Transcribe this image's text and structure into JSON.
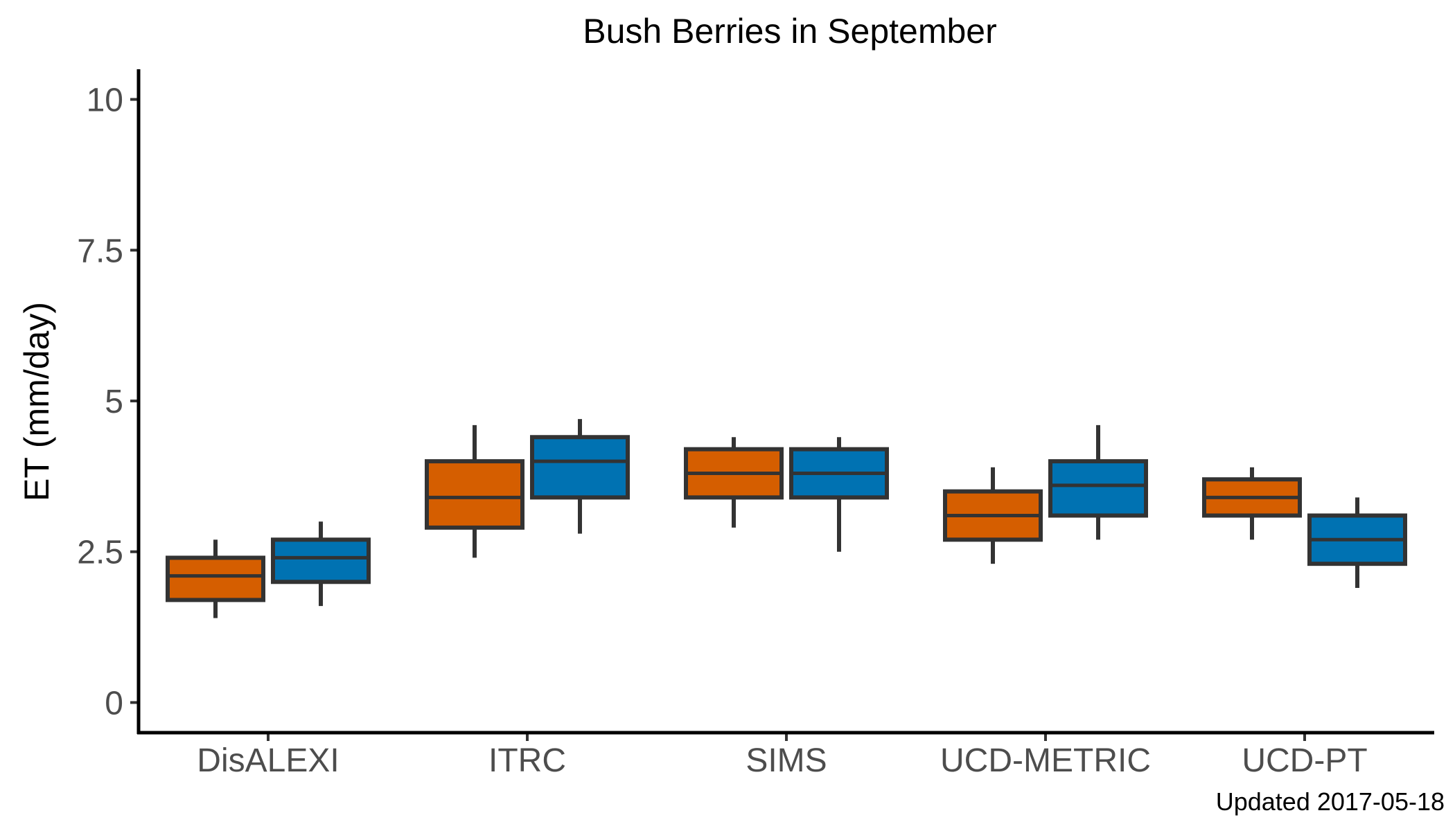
{
  "chart_data": {
    "type": "box",
    "title": "Bush Berries in September",
    "xlabel": "",
    "ylabel": "ET (mm/day)",
    "ylim": [
      -0.5,
      10.5
    ],
    "yticks": [
      0,
      2.5,
      5,
      7.5,
      10
    ],
    "ytick_labels": [
      "0",
      "2.5",
      "5",
      "7.5",
      "10"
    ],
    "categories": [
      "DisALEXI",
      "ITRC",
      "SIMS",
      "UCD-METRIC",
      "UCD-PT"
    ],
    "grid": false,
    "legend": "none",
    "series": [
      {
        "color": "#D55E00",
        "boxes": [
          {
            "whisker_low": 1.4,
            "q1": 1.7,
            "median": 2.1,
            "q3": 2.4,
            "whisker_high": 2.7
          },
          {
            "whisker_low": 2.4,
            "q1": 2.9,
            "median": 3.4,
            "q3": 4.0,
            "whisker_high": 4.6
          },
          {
            "whisker_low": 2.9,
            "q1": 3.4,
            "median": 3.8,
            "q3": 4.2,
            "whisker_high": 4.4
          },
          {
            "whisker_low": 2.3,
            "q1": 2.7,
            "median": 3.1,
            "q3": 3.5,
            "whisker_high": 3.9
          },
          {
            "whisker_low": 2.7,
            "q1": 3.1,
            "median": 3.4,
            "q3": 3.7,
            "whisker_high": 3.9
          }
        ]
      },
      {
        "color": "#0072B2",
        "boxes": [
          {
            "whisker_low": 1.6,
            "q1": 2.0,
            "median": 2.4,
            "q3": 2.7,
            "whisker_high": 3.0
          },
          {
            "whisker_low": 2.8,
            "q1": 3.4,
            "median": 4.0,
            "q3": 4.4,
            "whisker_high": 4.7
          },
          {
            "whisker_low": 2.5,
            "q1": 3.4,
            "median": 3.8,
            "q3": 4.2,
            "whisker_high": 4.4
          },
          {
            "whisker_low": 2.7,
            "q1": 3.1,
            "median": 3.6,
            "q3": 4.0,
            "whisker_high": 4.6
          },
          {
            "whisker_low": 1.9,
            "q1": 2.3,
            "median": 2.7,
            "q3": 3.1,
            "whisker_high": 3.4
          }
        ]
      }
    ],
    "box_outline_color": "#333333",
    "caption": "Updated  2017-05-18"
  }
}
